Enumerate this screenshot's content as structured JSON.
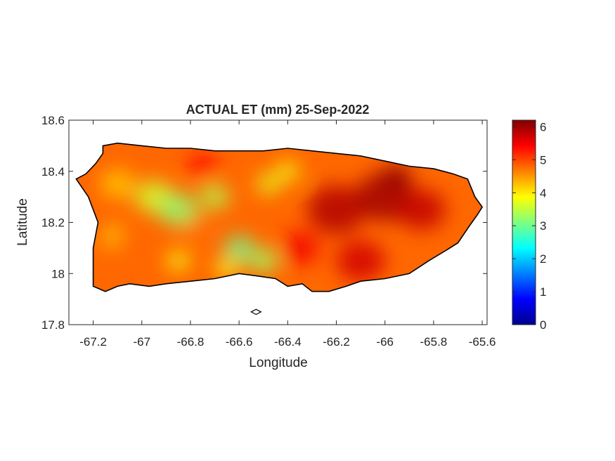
{
  "chart_data": {
    "type": "heatmap",
    "title": "ACTUAL ET (mm) 25-Sep-2022",
    "xlabel": "Longitude",
    "ylabel": "Latitude",
    "xlim": [
      -67.3,
      -65.58
    ],
    "ylim": [
      17.8,
      18.6
    ],
    "xticks": [
      -67.2,
      -67,
      -66.8,
      -66.6,
      -66.4,
      -66.2,
      -66,
      -65.8,
      -65.6
    ],
    "xtick_labels": [
      "-67.2",
      "-67",
      "-66.8",
      "-66.6",
      "-66.4",
      "-66.2",
      "-66",
      "-65.8",
      "-65.6"
    ],
    "yticks": [
      17.8,
      18,
      18.2,
      18.4,
      18.6
    ],
    "ytick_labels": [
      "17.8",
      "18",
      "18.2",
      "18.4",
      "18.6"
    ],
    "colorbar": {
      "colormap": "jet",
      "clim": [
        0,
        6.2
      ],
      "ticks": [
        0,
        1,
        2,
        3,
        4,
        5,
        6
      ],
      "tick_labels": [
        "0",
        "1",
        "2",
        "3",
        "4",
        "5",
        "6"
      ],
      "placement": "right"
    },
    "grid": false,
    "island_outline": [
      [
        -67.27,
        18.37
      ],
      [
        -67.23,
        18.39
      ],
      [
        -67.19,
        18.43
      ],
      [
        -67.16,
        18.47
      ],
      [
        -67.16,
        18.5
      ],
      [
        -67.1,
        18.51
      ],
      [
        -67.0,
        18.5
      ],
      [
        -66.9,
        18.49
      ],
      [
        -66.8,
        18.49
      ],
      [
        -66.7,
        18.48
      ],
      [
        -66.6,
        18.48
      ],
      [
        -66.5,
        18.48
      ],
      [
        -66.4,
        18.49
      ],
      [
        -66.3,
        18.48
      ],
      [
        -66.2,
        18.47
      ],
      [
        -66.1,
        18.46
      ],
      [
        -66.0,
        18.44
      ],
      [
        -65.9,
        18.42
      ],
      [
        -65.8,
        18.41
      ],
      [
        -65.72,
        18.39
      ],
      [
        -65.66,
        18.37
      ],
      [
        -65.63,
        18.3
      ],
      [
        -65.6,
        18.26
      ],
      [
        -65.62,
        18.23
      ],
      [
        -65.65,
        18.19
      ],
      [
        -65.7,
        18.12
      ],
      [
        -65.75,
        18.09
      ],
      [
        -65.82,
        18.05
      ],
      [
        -65.9,
        18.0
      ],
      [
        -66.0,
        17.98
      ],
      [
        -66.1,
        17.97
      ],
      [
        -66.16,
        17.95
      ],
      [
        -66.23,
        17.93
      ],
      [
        -66.3,
        17.93
      ],
      [
        -66.34,
        17.96
      ],
      [
        -66.4,
        17.95
      ],
      [
        -66.45,
        17.98
      ],
      [
        -66.52,
        17.99
      ],
      [
        -66.6,
        18.0
      ],
      [
        -66.7,
        17.98
      ],
      [
        -66.8,
        17.97
      ],
      [
        -66.9,
        17.96
      ],
      [
        -66.97,
        17.95
      ],
      [
        -67.05,
        17.96
      ],
      [
        -67.1,
        17.95
      ],
      [
        -67.15,
        17.93
      ],
      [
        -67.2,
        17.95
      ],
      [
        -67.2,
        18.05
      ],
      [
        -67.2,
        18.1
      ],
      [
        -67.18,
        18.2
      ],
      [
        -67.2,
        18.25
      ],
      [
        -67.22,
        18.3
      ],
      [
        -67.27,
        18.37
      ]
    ],
    "small_islands": [
      [
        [
          -66.55,
          17.85
        ],
        [
          -66.53,
          17.86
        ],
        [
          -66.51,
          17.85
        ],
        [
          -66.53,
          17.84
        ],
        [
          -66.55,
          17.85
        ]
      ]
    ],
    "field_regions": [
      {
        "lon": -67.1,
        "lat": 18.35,
        "r": 0.07,
        "value": 4.2
      },
      {
        "lon": -66.95,
        "lat": 18.3,
        "r": 0.08,
        "value": 3.6
      },
      {
        "lon": -66.85,
        "lat": 18.25,
        "r": 0.08,
        "value": 3.2
      },
      {
        "lon": -66.78,
        "lat": 18.18,
        "r": 0.05,
        "value": 4.7
      },
      {
        "lon": -66.7,
        "lat": 18.3,
        "r": 0.06,
        "value": 3.4
      },
      {
        "lon": -66.6,
        "lat": 18.1,
        "r": 0.06,
        "value": 3.0
      },
      {
        "lon": -66.5,
        "lat": 18.05,
        "r": 0.06,
        "value": 3.3
      },
      {
        "lon": -66.48,
        "lat": 18.35,
        "r": 0.05,
        "value": 3.7
      },
      {
        "lon": -66.4,
        "lat": 18.4,
        "r": 0.05,
        "value": 3.8
      },
      {
        "lon": -66.65,
        "lat": 18.02,
        "r": 0.05,
        "value": 3.8
      },
      {
        "lon": -66.85,
        "lat": 18.05,
        "r": 0.05,
        "value": 3.8
      },
      {
        "lon": -67.12,
        "lat": 18.15,
        "r": 0.05,
        "value": 4.2
      },
      {
        "lon": -66.2,
        "lat": 18.25,
        "r": 0.12,
        "value": 5.9
      },
      {
        "lon": -66.0,
        "lat": 18.3,
        "r": 0.12,
        "value": 6.0
      },
      {
        "lon": -65.85,
        "lat": 18.25,
        "r": 0.1,
        "value": 5.8
      },
      {
        "lon": -66.1,
        "lat": 18.05,
        "r": 0.1,
        "value": 5.7
      },
      {
        "lon": -66.35,
        "lat": 18.1,
        "r": 0.08,
        "value": 5.5
      },
      {
        "lon": -65.95,
        "lat": 18.38,
        "r": 0.06,
        "value": 6.1
      },
      {
        "lon": -67.15,
        "lat": 18.05,
        "r": 0.05,
        "value": 4.8
      },
      {
        "lon": -66.75,
        "lat": 18.42,
        "r": 0.06,
        "value": 5.4
      }
    ],
    "field_base_value": 4.8
  }
}
